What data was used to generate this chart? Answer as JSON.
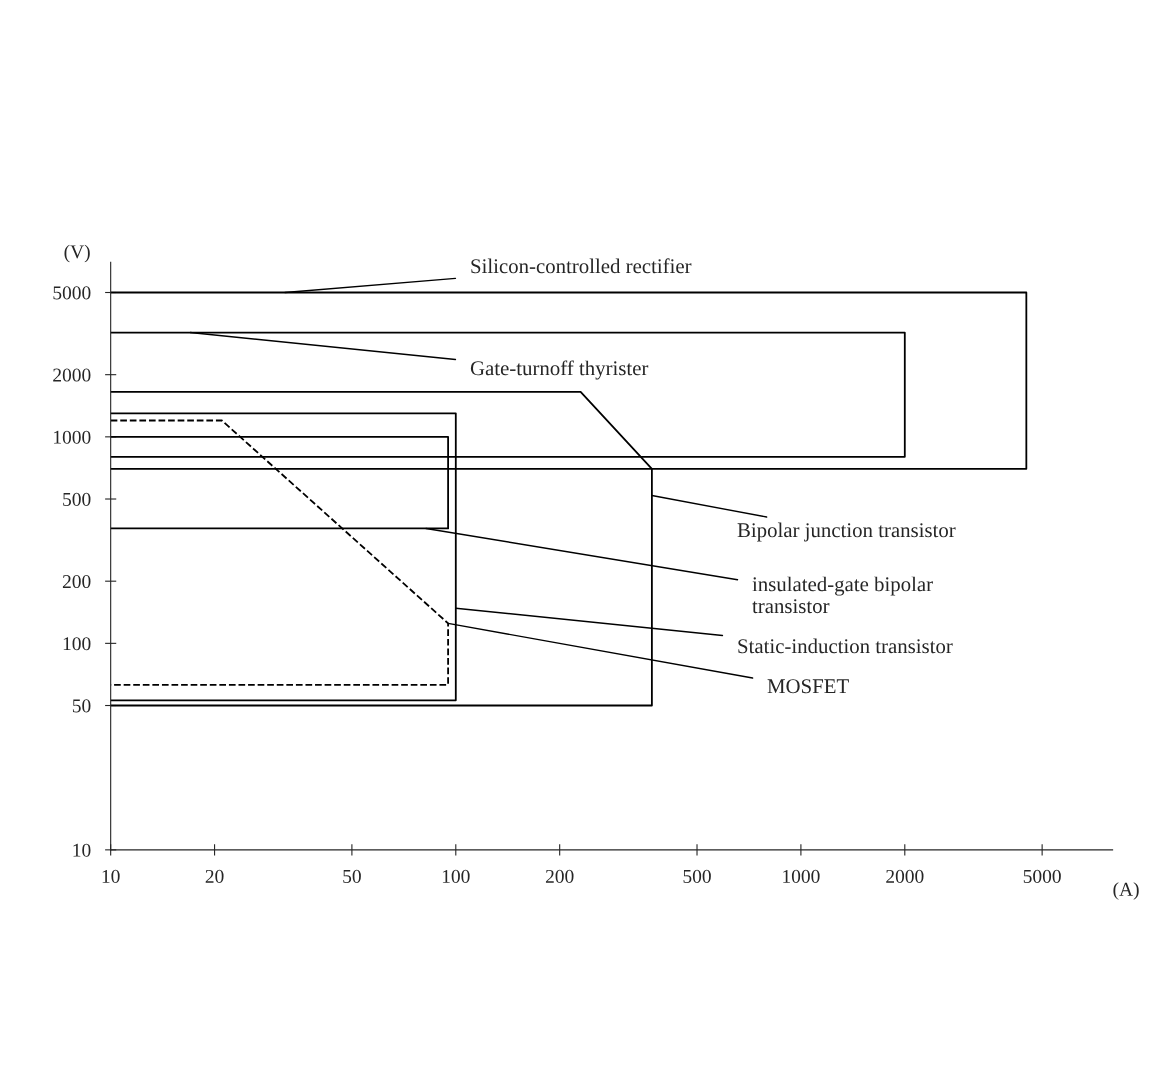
{
  "chart_data": {
    "type": "line",
    "xlabel": "(A)",
    "ylabel": "(V)",
    "log": "xy",
    "grid": false,
    "legend": false,
    "xlim": [
      10,
      8000
    ],
    "ylim": [
      10,
      7000
    ],
    "xticks": [
      10,
      20,
      50,
      100,
      200,
      500,
      1000,
      2000,
      5000
    ],
    "yticks": [
      10,
      50,
      100,
      200,
      500,
      1000,
      2000,
      5000
    ],
    "series": [
      {
        "color": "#000000",
        "line_style": "solid",
        "x": [
          10,
          4500,
          4500,
          10
        ],
        "values": [
          5000,
          5000,
          700,
          700
        ]
      },
      {
        "color": "#000000",
        "line_style": "solid",
        "x": [
          10,
          2000,
          2000,
          10
        ],
        "values": [
          3200,
          3200,
          800,
          800
        ]
      },
      {
        "color": "#000000",
        "line_style": "solid",
        "x": [
          10,
          230,
          370,
          370,
          10
        ],
        "values": [
          1650,
          1650,
          700,
          50,
          50
        ]
      },
      {
        "color": "#000000",
        "line_style": "solid",
        "x": [
          10,
          95,
          95,
          10
        ],
        "values": [
          1000,
          1000,
          360,
          360
        ]
      },
      {
        "color": "#000000",
        "line_style": "solid",
        "x": [
          10,
          100,
          100,
          10
        ],
        "values": [
          1300,
          1300,
          53,
          53
        ]
      },
      {
        "color": "#000000",
        "line_style": "dashed",
        "x": [
          10,
          21,
          95,
          95,
          10
        ],
        "values": [
          1200,
          1200,
          125,
          63,
          63
        ]
      }
    ],
    "annotations": [
      {
        "text": "Silicon-controlled rectifier",
        "x": 32,
        "y": 5000
      },
      {
        "text": "Gate-turnoff thyrister",
        "x": 17,
        "y": 3200
      },
      {
        "text": "Bipolar junction transistor",
        "x": 370,
        "y": 520
      },
      {
        "text": "insulated-gate bipolar\ntransistor",
        "x": 82,
        "y": 360
      },
      {
        "text": "Static-induction transistor",
        "x": 100,
        "y": 148
      },
      {
        "text": "MOSFET",
        "x": 95,
        "y": 125
      }
    ]
  }
}
